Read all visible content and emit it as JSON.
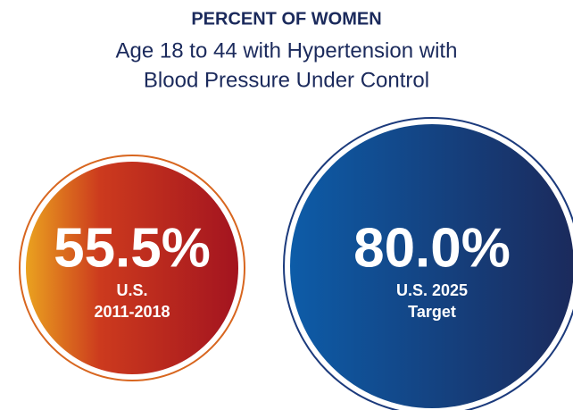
{
  "title": "PERCENT OF WOMEN",
  "subtitle": [
    "Age 18 to 44 with Hypertension with",
    "Blood Pressure Under Control"
  ],
  "circles": [
    {
      "value": "55.5%",
      "label": [
        "U.S.",
        "2011-2018"
      ]
    },
    {
      "value": "80.0%",
      "label": [
        "U.S. 2025",
        "Target"
      ]
    }
  ]
}
